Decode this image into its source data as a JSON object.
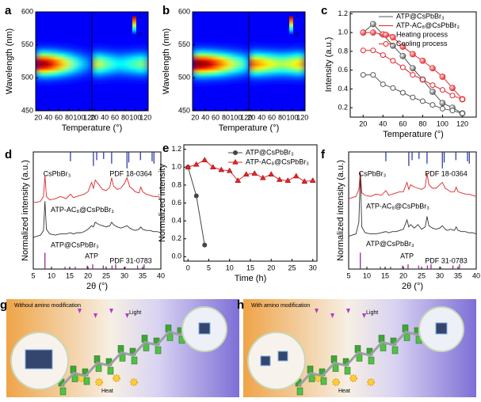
{
  "chart_data": [
    {
      "label": "a",
      "type": "heatmap",
      "xlabel": "Temperature (°)",
      "ylabel": "Wavelength (nm)",
      "ylim": [
        450,
        600
      ],
      "yticks": [
        450,
        500,
        550,
        600
      ],
      "peak_wavelength": 521,
      "clim": [
        0,
        1
      ],
      "cticks": [
        0,
        1
      ],
      "segments": [
        {
          "xlim": [
            15,
            125
          ],
          "xticks": [
            20,
            40,
            60,
            80,
            100,
            120
          ],
          "x": [
            20,
            30,
            40,
            50,
            60,
            70,
            80,
            90,
            100,
            110,
            120
          ],
          "values": [
            0.95,
            1,
            0.95,
            0.85,
            0.75,
            0.62,
            0.5,
            0.38,
            0.28,
            0.2,
            0.15
          ]
        },
        {
          "xlim": [
            15,
            125
          ],
          "xticks": [
            20,
            40,
            60,
            80,
            100,
            120
          ],
          "x": [
            20,
            30,
            40,
            50,
            60,
            70,
            80,
            90,
            100,
            110,
            120
          ],
          "values": [
            0.55,
            0.5,
            0.42,
            0.36,
            0.3,
            0.28,
            0.3,
            0.34,
            0.38,
            0.42,
            0.45
          ]
        }
      ]
    },
    {
      "label": "b",
      "type": "heatmap",
      "xlabel": "Temperature (°)",
      "ylabel": "Wavelength (nm)",
      "ylim": [
        450,
        600
      ],
      "yticks": [
        450,
        500,
        550,
        600
      ],
      "peak_wavelength": 521,
      "clim": [
        0,
        1
      ],
      "cticks": [
        0,
        1
      ],
      "segments": [
        {
          "xlim": [
            15,
            125
          ],
          "xticks": [
            20,
            40,
            60,
            80,
            100,
            120
          ],
          "x": [
            20,
            30,
            40,
            50,
            60,
            70,
            80,
            90,
            100,
            110,
            120
          ],
          "values": [
            1,
            1,
            0.98,
            0.93,
            0.85,
            0.75,
            0.65,
            0.55,
            0.45,
            0.38,
            0.32
          ]
        },
        {
          "xlim": [
            15,
            125
          ],
          "xticks": [
            20,
            40,
            60,
            80,
            100,
            120
          ],
          "x": [
            20,
            30,
            40,
            50,
            60,
            70,
            80,
            90,
            100,
            110,
            120
          ],
          "values": [
            0.75,
            0.72,
            0.66,
            0.6,
            0.55,
            0.5,
            0.48,
            0.5,
            0.55,
            0.6,
            0.65
          ]
        }
      ]
    },
    {
      "label": "c",
      "type": "line",
      "xlabel": "Temperature (°)",
      "ylabel": "Intensity (a.u.)",
      "xlim": [
        7,
        134
      ],
      "xticks": [
        20,
        40,
        60,
        80,
        100,
        120
      ],
      "ylim": [
        0.1,
        1.22
      ],
      "yticks": [
        0.2,
        0.4,
        0.6,
        0.8,
        {
          "value": 1,
          "label": "1.0"
        },
        1.2
      ],
      "legend": [
        {
          "label": "ATP@CsPbBr₃",
          "color": "#555555",
          "marker": "none"
        },
        {
          "label": "ATP-AC₈@CsPbBr₃",
          "color": "#e0262b",
          "marker": "none"
        },
        {
          "label": "Heating process",
          "color": "#e0262b",
          "marker": "sphere"
        },
        {
          "label": "Cooling process",
          "color": "#e0262b",
          "marker": "open"
        }
      ],
      "x": [
        20,
        30,
        40,
        50,
        60,
        70,
        80,
        90,
        100,
        110,
        120
      ],
      "series": [
        {
          "color": "#555555",
          "marker": "sphere",
          "values": [
            1.0,
            1.09,
            0.98,
            0.86,
            0.75,
            0.62,
            0.5,
            0.37,
            0.25,
            0.2,
            0.14
          ]
        },
        {
          "color": "#555555",
          "marker": "open",
          "values": [
            0.55,
            0.55,
            0.45,
            0.41,
            0.36,
            0.31,
            0.27,
            0.23,
            0.19,
            0.17,
            0.14
          ]
        },
        {
          "color": "#e0262b",
          "marker": "sphere",
          "values": [
            1.0,
            1.0,
            0.98,
            0.95,
            0.85,
            0.77,
            0.7,
            0.62,
            0.53,
            0.41,
            0.29
          ]
        },
        {
          "color": "#e0262b",
          "marker": "open",
          "values": [
            0.81,
            0.81,
            0.76,
            0.7,
            0.63,
            0.55,
            0.5,
            0.44,
            0.39,
            0.33,
            0.29
          ]
        }
      ]
    },
    {
      "label": "d",
      "type": "xrd",
      "xlabel": "2θ (°)",
      "ylabel": "Normalized intensity (a.u.)",
      "xlim": [
        5,
        40
      ],
      "xticks": [
        5,
        10,
        15,
        20,
        25,
        30,
        35,
        40
      ],
      "ylim": [
        0,
        1
      ],
      "x": [
        5,
        6,
        7,
        7.8,
        8.2,
        8.6,
        9.5,
        11,
        12.5,
        14,
        15.2,
        16,
        17,
        18,
        19,
        20,
        21,
        21.5,
        22,
        23,
        24,
        25,
        26,
        26.5,
        27,
        28,
        29,
        30,
        30.7,
        31.5,
        32,
        33,
        34,
        34.5,
        35,
        36,
        37,
        38,
        39,
        40
      ],
      "series": [
        {
          "name": "ATP-AC₈@CsPbBr₃",
          "color": "#e0262b",
          "values": [
            0.57,
            0.57,
            0.58,
            0.62,
            0.8,
            0.62,
            0.59,
            0.6,
            0.62,
            0.6,
            0.64,
            0.61,
            0.62,
            0.63,
            0.64,
            0.66,
            0.74,
            0.69,
            0.76,
            0.72,
            0.68,
            0.67,
            0.7,
            0.78,
            0.71,
            0.68,
            0.69,
            0.73,
            0.78,
            0.7,
            0.69,
            0.66,
            0.65,
            0.7,
            0.66,
            0.64,
            0.63,
            0.62,
            0.62,
            0.61
          ]
        },
        {
          "name": "ATP@CsPbBr₃",
          "color": "#333333",
          "values": [
            0.27,
            0.28,
            0.29,
            0.33,
            0.58,
            0.34,
            0.3,
            0.29,
            0.3,
            0.3,
            0.31,
            0.3,
            0.31,
            0.31,
            0.32,
            0.34,
            0.37,
            0.36,
            0.4,
            0.38,
            0.37,
            0.36,
            0.37,
            0.4,
            0.38,
            0.36,
            0.35,
            0.36,
            0.37,
            0.35,
            0.34,
            0.33,
            0.34,
            0.36,
            0.34,
            0.33,
            0.33,
            0.32,
            0.32,
            0.31
          ]
        }
      ],
      "references": [
        {
          "name": "CsPbBr₃",
          "pdf": "PDF 18-0364",
          "color": "#1f2f9f",
          "side": "top",
          "positions": [
            15.2,
            21.5,
            22.4,
            24.3,
            26.5,
            30.7,
            31.2,
            34.4,
            37.6,
            38.1
          ],
          "heights": [
            0.08,
            0.12,
            0.07,
            0.06,
            0.1,
            0.14,
            0.09,
            0.07,
            0.08,
            0.1
          ]
        },
        {
          "name": "ATP",
          "pdf": "PDF 31-0783",
          "color": "#8b1a8b",
          "side": "bottom",
          "positions": [
            8.2,
            13.7,
            16.5,
            19.8,
            21.3,
            24.2,
            26.6,
            27.6,
            30.2,
            33.6,
            35.4
          ],
          "heights": [
            0.14,
            0.02,
            0.02,
            0.03,
            0.04,
            0.03,
            0.03,
            0.04,
            0.02,
            0.03,
            0.04
          ]
        }
      ]
    },
    {
      "label": "e",
      "type": "line",
      "xlabel": "Time (h)",
      "ylabel": "Normalized intensity",
      "xlim": [
        -1,
        31
      ],
      "xticks": [
        0,
        5,
        10,
        15,
        20,
        25,
        30
      ],
      "ylim": [
        -0.05,
        1.25
      ],
      "yticks": [
        {
          "value": 0,
          "label": "0.0"
        },
        0.2,
        0.4,
        0.6,
        0.8,
        {
          "value": 1,
          "label": "1.0"
        },
        1.2
      ],
      "series": [
        {
          "name": "ATP@CsPbBr₃",
          "color": "#444444",
          "marker": "circle",
          "x": [
            0,
            2,
            4
          ],
          "values": [
            1.0,
            0.68,
            0.13
          ]
        },
        {
          "name": "ATP-AC₈@CsPbBr₃",
          "color": "#e0262b",
          "marker": "triangle",
          "x": [
            0,
            2,
            4,
            6,
            8,
            10,
            12,
            14,
            16,
            18,
            20,
            22,
            24,
            26,
            28,
            30
          ],
          "values": [
            1.0,
            1.03,
            1.08,
            1.0,
            0.97,
            0.96,
            0.85,
            0.92,
            0.93,
            0.88,
            0.92,
            0.86,
            0.85,
            0.9,
            0.84,
            0.85
          ]
        }
      ]
    },
    {
      "label": "f",
      "type": "xrd",
      "xlabel": "2θ (°)",
      "ylabel": "Normalized intensity (a.u.)",
      "xlim": [
        5,
        40
      ],
      "xticks": [
        5,
        10,
        15,
        20,
        25,
        30,
        35,
        40
      ],
      "ylim": [
        0,
        1
      ],
      "x": [
        5,
        6,
        7,
        7.8,
        8.2,
        8.6,
        9.5,
        11,
        12.5,
        14,
        15.2,
        16,
        17,
        18,
        19,
        20,
        21,
        21.5,
        22,
        23,
        24,
        25,
        26,
        26.5,
        27,
        28,
        29,
        30,
        30.7,
        31.5,
        32,
        33,
        34,
        34.5,
        35,
        36,
        37,
        38,
        39,
        40
      ],
      "series": [
        {
          "name": "ATP-AC₈@CsPbBr₃",
          "color": "#e0262b",
          "values": [
            0.6,
            0.61,
            0.62,
            0.68,
            0.83,
            0.65,
            0.63,
            0.62,
            0.64,
            0.63,
            0.67,
            0.63,
            0.64,
            0.65,
            0.66,
            0.66,
            0.74,
            0.68,
            0.72,
            0.7,
            0.69,
            0.68,
            0.7,
            0.82,
            0.72,
            0.69,
            0.69,
            0.72,
            0.74,
            0.69,
            0.68,
            0.66,
            0.66,
            0.7,
            0.66,
            0.65,
            0.64,
            0.64,
            0.63,
            0.62
          ]
        },
        {
          "name": "ATP@CsPbBr₃",
          "color": "#333333",
          "values": [
            0.28,
            0.29,
            0.3,
            0.4,
            0.82,
            0.36,
            0.31,
            0.3,
            0.3,
            0.31,
            0.32,
            0.31,
            0.32,
            0.32,
            0.33,
            0.34,
            0.42,
            0.36,
            0.38,
            0.35,
            0.38,
            0.34,
            0.36,
            0.45,
            0.37,
            0.35,
            0.34,
            0.35,
            0.37,
            0.34,
            0.33,
            0.34,
            0.33,
            0.36,
            0.33,
            0.32,
            0.32,
            0.31,
            0.31,
            0.3
          ]
        }
      ],
      "references": [
        {
          "name": "CsPbBr₃",
          "pdf": "PDF 18-0364",
          "color": "#1f2f9f",
          "side": "top",
          "positions": [
            15.2,
            21.5,
            22.4,
            24.3,
            26.5,
            30.7,
            31.2,
            34.4,
            37.6,
            38.1
          ],
          "heights": [
            0.08,
            0.12,
            0.07,
            0.06,
            0.1,
            0.14,
            0.09,
            0.07,
            0.08,
            0.1
          ]
        },
        {
          "name": "ATP",
          "pdf": "PDF 31-0783",
          "color": "#8b1a8b",
          "side": "bottom",
          "positions": [
            8.2,
            13.7,
            16.5,
            19.8,
            21.3,
            24.2,
            26.6,
            27.6,
            30.2,
            33.6,
            35.4
          ],
          "heights": [
            0.14,
            0.02,
            0.02,
            0.03,
            0.04,
            0.03,
            0.03,
            0.04,
            0.02,
            0.03,
            0.04
          ]
        }
      ]
    }
  ],
  "illustrations": [
    {
      "label": "g",
      "caption": "Without amino modification",
      "light": "Light",
      "heat": "Heat"
    },
    {
      "label": "h",
      "caption": "With amino modification",
      "light": "Light",
      "heat": "Heat"
    }
  ]
}
